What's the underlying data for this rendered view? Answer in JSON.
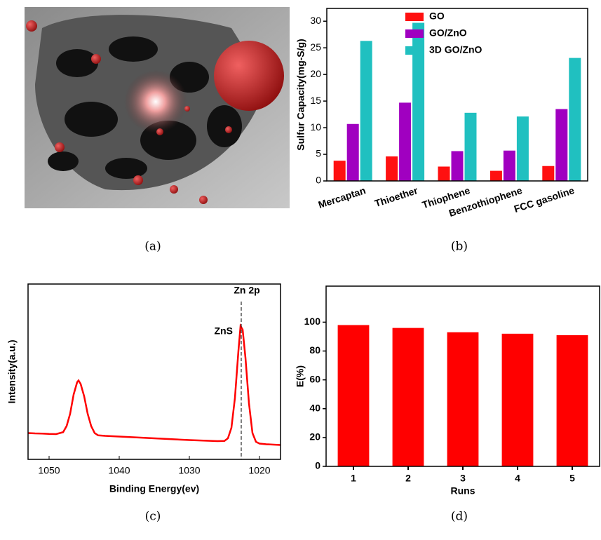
{
  "captions": [
    "(a)",
    "(b)",
    "(c)",
    "(d)"
  ],
  "chart_data": [
    {
      "type": "bar",
      "ylabel": "Sulfur Capacity(mg-S/g)",
      "categories": [
        "Mercaptan",
        "Thioether",
        "Thiophene",
        "Benzothiophene",
        "FCC gasoline"
      ],
      "series": [
        {
          "name": "GO",
          "color": "#ff1010",
          "values": [
            3.8,
            4.6,
            2.7,
            1.9,
            2.8
          ]
        },
        {
          "name": "GO/ZnO",
          "color": "#a000c0",
          "values": [
            10.7,
            14.7,
            5.6,
            5.7,
            13.5
          ]
        },
        {
          "name": "3D GO/ZnO",
          "color": "#20c0c0",
          "values": [
            26.3,
            29.7,
            12.8,
            12.1,
            23.1
          ]
        }
      ],
      "ylim": [
        0,
        32.4
      ],
      "yticks": [
        0,
        5,
        10,
        15,
        20,
        25,
        30
      ],
      "legend": "upper-right"
    },
    {
      "type": "line",
      "xlabel": "Binding Energy(ev)",
      "ylabel": "Intensity(a.u.)",
      "x": [
        1053,
        1052,
        1051,
        1050,
        1049,
        1048,
        1047.5,
        1047,
        1046.5,
        1046,
        1045.8,
        1045.5,
        1045,
        1044.5,
        1044,
        1043.5,
        1043,
        1042,
        1040,
        1038,
        1036,
        1034,
        1032,
        1030,
        1028,
        1026,
        1025,
        1024.5,
        1024,
        1023.5,
        1023,
        1022.7,
        1022.4,
        1022,
        1021.5,
        1021,
        1020.5,
        1020,
        1019,
        1018,
        1017
      ],
      "y": [
        15,
        14.8,
        14.7,
        14.5,
        14.4,
        15.5,
        19,
        26,
        37,
        44,
        45,
        43,
        36,
        26,
        19,
        15,
        13.7,
        13.4,
        13,
        12.6,
        12.2,
        11.8,
        11.4,
        11,
        10.7,
        10.4,
        10.5,
        12,
        18,
        35,
        62,
        76,
        74,
        58,
        32,
        15,
        10,
        9,
        8.6,
        8.4,
        8.2
      ],
      "color": "#ff0000",
      "xlim": [
        1053,
        1017
      ],
      "xticks": [
        1050,
        1040,
        1030,
        1020
      ],
      "ylim": [
        0,
        100
      ],
      "vline": 1022.6,
      "annotations": [
        "Zn 2p",
        "ZnS"
      ]
    },
    {
      "type": "bar",
      "xlabel": "Runs",
      "ylabel": "E(%)",
      "categories": [
        "1",
        "2",
        "3",
        "4",
        "5"
      ],
      "series": [
        {
          "color": "#ff0000",
          "values": [
            98,
            96,
            93,
            92,
            91
          ]
        }
      ],
      "ylim": [
        0,
        125
      ],
      "yticks": [
        0,
        20,
        40,
        60,
        80,
        100
      ]
    }
  ]
}
